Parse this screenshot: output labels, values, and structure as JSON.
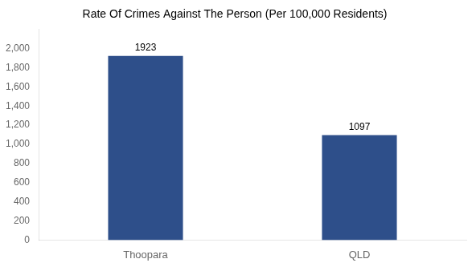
{
  "chart_data": {
    "type": "bar",
    "title": "Rate Of Crimes Against The Person (Per 100,000 Residents)",
    "categories": [
      "Thoopara",
      "QLD"
    ],
    "values": [
      1923,
      1097
    ],
    "color": "#2e4f8a",
    "ylim": [
      0,
      2200
    ],
    "yticks": [
      0,
      200,
      400,
      600,
      800,
      1000,
      1200,
      1400,
      1600,
      1800,
      2000
    ],
    "grid": false,
    "data_labels": true
  }
}
